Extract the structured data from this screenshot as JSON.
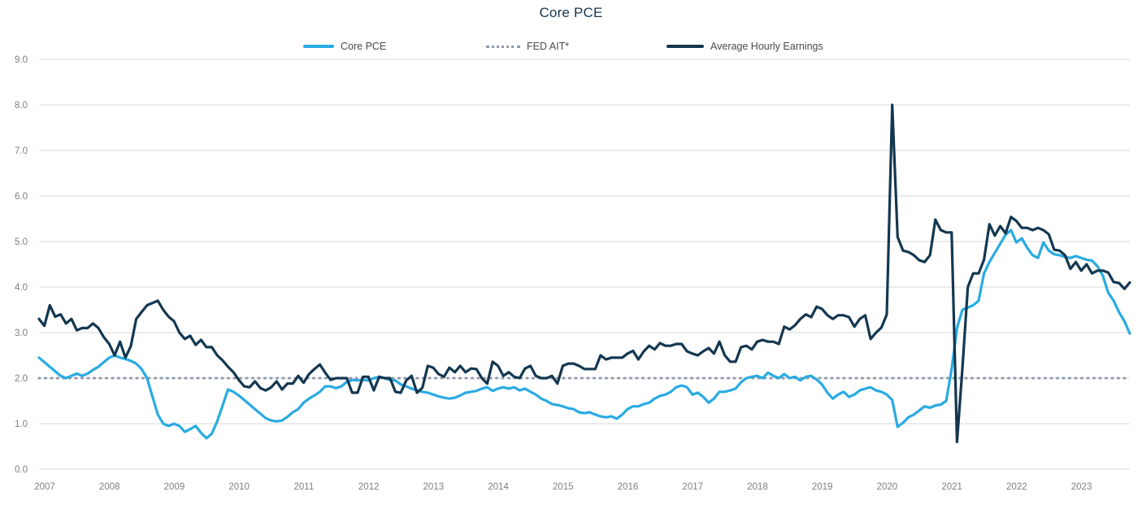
{
  "title": "Core PCE",
  "legend": {
    "items": [
      {
        "label": "Core PCE",
        "style": "solid",
        "color": "#29abe2"
      },
      {
        "label": "FED AIT*",
        "style": "dotted",
        "color": "#8e9aab"
      },
      {
        "label": "Average Hourly Earnings",
        "style": "solid",
        "color": "#133750"
      }
    ]
  },
  "colors": {
    "background": "#ffffff",
    "grid": "#d9d9d9",
    "axis_text": "#7f7f7f",
    "title_text": "#16364e",
    "legend_text": "#4a4a4a",
    "core_pce_line": "#29abe2",
    "fed_ait_dots": "#8e9aab",
    "ahe_line": "#133750"
  },
  "y_axis": {
    "ticks": [
      "0.0",
      "1.0",
      "2.0",
      "3.0",
      "4.0",
      "5.0",
      "6.0",
      "7.0",
      "8.0",
      "9.0"
    ],
    "min": 0,
    "max": 9
  },
  "x_axis": {
    "ticks": [
      "2007",
      "2008",
      "2009",
      "2010",
      "2011",
      "2012",
      "2013",
      "2014",
      "2015",
      "2016",
      "2017",
      "2018",
      "2019",
      "2020",
      "2021",
      "2022",
      "2023"
    ]
  },
  "chart_data": {
    "type": "line",
    "title": "Core PCE",
    "x_unit": "monthly",
    "x_start": "2007-01",
    "x_end": "2023-11",
    "xlabel": "",
    "ylabel": "",
    "ylim": [
      0,
      9
    ],
    "grid": "horizontal",
    "legend_position": "top",
    "series": [
      {
        "name": "Core PCE",
        "color": "#29abe2",
        "style": "solid",
        "values": [
          2.45,
          2.35,
          2.25,
          2.15,
          2.05,
          2.0,
          2.05,
          2.1,
          2.05,
          2.1,
          2.18,
          2.25,
          2.35,
          2.45,
          2.5,
          2.45,
          2.42,
          2.38,
          2.32,
          2.2,
          2.0,
          1.6,
          1.2,
          1.0,
          0.95,
          1.0,
          0.95,
          0.82,
          0.88,
          0.95,
          0.8,
          0.68,
          0.78,
          1.05,
          1.4,
          1.75,
          1.7,
          1.62,
          1.52,
          1.42,
          1.32,
          1.22,
          1.12,
          1.07,
          1.05,
          1.07,
          1.15,
          1.25,
          1.32,
          1.46,
          1.55,
          1.62,
          1.7,
          1.82,
          1.82,
          1.78,
          1.82,
          1.92,
          1.96,
          1.95,
          1.96,
          1.95,
          2.0,
          2.03,
          2.0,
          1.96,
          1.95,
          1.86,
          1.82,
          1.77,
          1.73,
          1.7,
          1.68,
          1.64,
          1.6,
          1.57,
          1.55,
          1.57,
          1.62,
          1.68,
          1.7,
          1.72,
          1.77,
          1.8,
          1.72,
          1.77,
          1.8,
          1.77,
          1.8,
          1.73,
          1.77,
          1.7,
          1.64,
          1.55,
          1.5,
          1.43,
          1.41,
          1.38,
          1.34,
          1.32,
          1.25,
          1.23,
          1.25,
          1.2,
          1.16,
          1.14,
          1.16,
          1.11,
          1.2,
          1.32,
          1.38,
          1.38,
          1.43,
          1.46,
          1.55,
          1.61,
          1.64,
          1.7,
          1.8,
          1.84,
          1.8,
          1.64,
          1.68,
          1.59,
          1.46,
          1.55,
          1.7,
          1.7,
          1.73,
          1.77,
          1.91,
          2.0,
          2.03,
          2.05,
          2.0,
          2.12,
          2.05,
          2.0,
          2.09,
          2.0,
          2.03,
          1.95,
          2.03,
          2.05,
          1.97,
          1.86,
          1.68,
          1.55,
          1.64,
          1.7,
          1.59,
          1.64,
          1.73,
          1.77,
          1.8,
          1.73,
          1.7,
          1.64,
          1.52,
          0.93,
          1.02,
          1.14,
          1.2,
          1.29,
          1.38,
          1.35,
          1.4,
          1.42,
          1.5,
          2.2,
          3.1,
          3.5,
          3.55,
          3.6,
          3.7,
          4.3,
          4.55,
          4.75,
          4.95,
          5.15,
          5.25,
          4.98,
          5.07,
          4.86,
          4.7,
          4.64,
          4.98,
          4.8,
          4.72,
          4.7,
          4.66,
          4.64,
          4.68,
          4.64,
          4.6,
          4.58,
          4.46,
          4.25,
          3.88,
          3.7,
          3.45,
          3.25,
          2.98
        ]
      },
      {
        "name": "FED AIT*",
        "color": "#8e9aab",
        "style": "dotted",
        "constant": 2.0
      },
      {
        "name": "Average Hourly Earnings",
        "color": "#133750",
        "style": "solid",
        "values": [
          3.3,
          3.15,
          3.6,
          3.35,
          3.4,
          3.2,
          3.3,
          3.05,
          3.1,
          3.1,
          3.2,
          3.1,
          2.9,
          2.75,
          2.5,
          2.8,
          2.45,
          2.7,
          3.3,
          3.45,
          3.6,
          3.65,
          3.7,
          3.5,
          3.35,
          3.25,
          3.0,
          2.86,
          2.93,
          2.73,
          2.84,
          2.68,
          2.68,
          2.5,
          2.39,
          2.25,
          2.13,
          1.96,
          1.82,
          1.8,
          1.93,
          1.78,
          1.73,
          1.8,
          1.93,
          1.75,
          1.88,
          1.88,
          2.05,
          1.9,
          2.09,
          2.2,
          2.3,
          2.12,
          1.96,
          2.0,
          2.0,
          2.0,
          1.68,
          1.68,
          2.03,
          2.03,
          1.73,
          2.03,
          2.0,
          2.0,
          1.7,
          1.68,
          1.95,
          2.05,
          1.68,
          1.79,
          2.27,
          2.23,
          2.09,
          2.03,
          2.23,
          2.13,
          2.27,
          2.13,
          2.21,
          2.2,
          2.0,
          1.88,
          2.36,
          2.27,
          2.05,
          2.13,
          2.03,
          2.0,
          2.21,
          2.27,
          2.05,
          2.0,
          2.0,
          2.05,
          1.88,
          2.27,
          2.32,
          2.32,
          2.27,
          2.2,
          2.2,
          2.2,
          2.5,
          2.41,
          2.45,
          2.45,
          2.45,
          2.54,
          2.6,
          2.41,
          2.59,
          2.71,
          2.63,
          2.77,
          2.71,
          2.71,
          2.75,
          2.75,
          2.59,
          2.54,
          2.5,
          2.59,
          2.66,
          2.54,
          2.8,
          2.5,
          2.36,
          2.36,
          2.68,
          2.71,
          2.63,
          2.8,
          2.84,
          2.8,
          2.8,
          2.75,
          3.13,
          3.07,
          3.16,
          3.3,
          3.4,
          3.34,
          3.57,
          3.52,
          3.38,
          3.3,
          3.38,
          3.38,
          3.34,
          3.13,
          3.3,
          3.38,
          2.86,
          3.0,
          3.11,
          3.4,
          8.0,
          5.1,
          4.8,
          4.77,
          4.7,
          4.59,
          4.55,
          4.7,
          5.48,
          5.25,
          5.2,
          5.2,
          0.6,
          2.2,
          4.0,
          4.3,
          4.3,
          4.6,
          5.38,
          5.13,
          5.34,
          5.18,
          5.54,
          5.45,
          5.3,
          5.3,
          5.25,
          5.3,
          5.25,
          5.16,
          4.82,
          4.8,
          4.7,
          4.4,
          4.55,
          4.36,
          4.5,
          4.3,
          4.36,
          4.36,
          4.32,
          4.11,
          4.09,
          3.96,
          4.1
        ]
      }
    ]
  }
}
